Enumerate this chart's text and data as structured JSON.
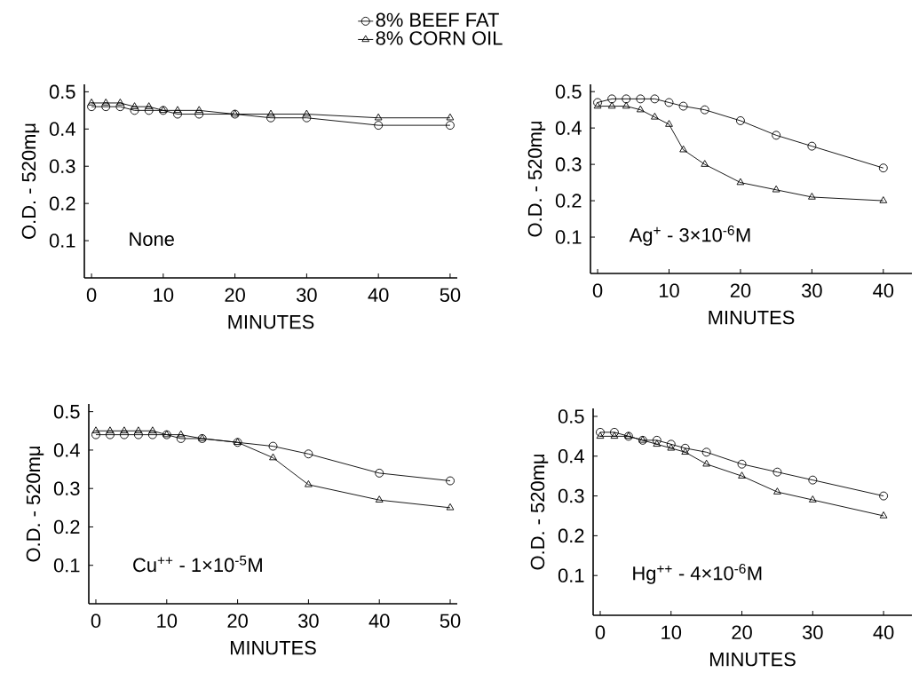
{
  "chart_data": [
    {
      "type": "line",
      "xlabel": "MINUTES",
      "ylabel": "O.D. - 520mμ",
      "annotations": [
        "None"
      ],
      "legend": "top",
      "x": [
        0,
        2,
        4,
        6,
        8,
        10,
        12,
        15,
        20,
        25,
        30,
        40,
        50
      ],
      "xlim": [
        -1,
        51
      ],
      "xticks": [
        0,
        10,
        20,
        30,
        40,
        50
      ],
      "ylim": [
        0,
        0.52
      ],
      "yticks": [
        0.1,
        0.2,
        0.3,
        0.4,
        0.5
      ],
      "series": [
        {
          "name": "8% BEEF FAT",
          "color": "#000000",
          "marker": "circle",
          "values": [
            0.46,
            0.46,
            0.46,
            0.45,
            0.45,
            0.45,
            0.44,
            0.44,
            0.44,
            0.43,
            0.43,
            0.41,
            0.41
          ]
        },
        {
          "name": "8% CORN OIL",
          "color": "#000000",
          "marker": "triangle",
          "values": [
            0.47,
            0.47,
            0.47,
            0.46,
            0.46,
            0.45,
            0.45,
            0.45,
            0.44,
            0.44,
            0.44,
            0.43,
            0.43
          ]
        }
      ]
    },
    {
      "type": "line",
      "xlabel": "MINUTES",
      "ylabel": "O.D. - 520mμ",
      "annotations": [
        "Ag$^{+}$ - 3×10$^{-6}$M"
      ],
      "x": [
        0,
        2,
        4,
        6,
        8,
        10,
        12,
        15,
        20,
        25,
        30,
        40
      ],
      "xlim": [
        -1,
        44
      ],
      "xticks": [
        0,
        10,
        20,
        30,
        40
      ],
      "ylim": [
        0,
        0.52
      ],
      "yticks": [
        0.1,
        0.2,
        0.3,
        0.4,
        0.5
      ],
      "series": [
        {
          "color": "#000000",
          "marker": "circle",
          "values": [
            0.47,
            0.48,
            0.48,
            0.48,
            0.48,
            0.47,
            0.46,
            0.45,
            0.42,
            0.38,
            0.35,
            0.29
          ]
        },
        {
          "color": "#000000",
          "marker": "triangle",
          "values": [
            0.46,
            0.46,
            0.46,
            0.45,
            0.43,
            0.41,
            0.34,
            0.3,
            0.25,
            0.23,
            0.21,
            0.2
          ]
        }
      ]
    },
    {
      "type": "line",
      "xlabel": "MINUTES",
      "ylabel": "O.D. - 520mμ",
      "annotations": [
        "Cu$^{++}$ - 1×10$^{-5}$M"
      ],
      "x": [
        0,
        2,
        4,
        6,
        8,
        10,
        12,
        15,
        20,
        25,
        30,
        40,
        50
      ],
      "xlim": [
        -1,
        51
      ],
      "xticks": [
        0,
        10,
        20,
        30,
        40,
        50
      ],
      "ylim": [
        0,
        0.52
      ],
      "yticks": [
        0.1,
        0.2,
        0.3,
        0.4,
        0.5
      ],
      "series": [
        {
          "color": "#000000",
          "marker": "circle",
          "values": [
            0.44,
            0.44,
            0.44,
            0.44,
            0.44,
            0.44,
            0.43,
            0.43,
            0.42,
            0.41,
            0.39,
            0.34,
            0.32
          ]
        },
        {
          "color": "#000000",
          "marker": "triangle",
          "values": [
            0.45,
            0.45,
            0.45,
            0.45,
            0.45,
            0.44,
            0.44,
            0.43,
            0.42,
            0.38,
            0.31,
            0.27,
            0.25
          ]
        }
      ]
    },
    {
      "type": "line",
      "xlabel": "MINUTES",
      "ylabel": "O.D. - 520mμ",
      "annotations": [
        "Hg$^{++}$ - 4×10$^{-6}$M"
      ],
      "x": [
        0,
        2,
        4,
        6,
        8,
        10,
        12,
        15,
        20,
        25,
        30,
        40
      ],
      "xlim": [
        -1,
        44
      ],
      "xticks": [
        0,
        10,
        20,
        30,
        40
      ],
      "ylim": [
        0,
        0.52
      ],
      "yticks": [
        0.1,
        0.2,
        0.3,
        0.4,
        0.5
      ],
      "series": [
        {
          "color": "#000000",
          "marker": "circle",
          "values": [
            0.46,
            0.46,
            0.45,
            0.44,
            0.44,
            0.43,
            0.42,
            0.41,
            0.38,
            0.36,
            0.34,
            0.3
          ]
        },
        {
          "color": "#000000",
          "marker": "triangle",
          "values": [
            0.45,
            0.45,
            0.45,
            0.44,
            0.43,
            0.42,
            0.41,
            0.38,
            0.35,
            0.31,
            0.29,
            0.25
          ]
        }
      ]
    }
  ]
}
